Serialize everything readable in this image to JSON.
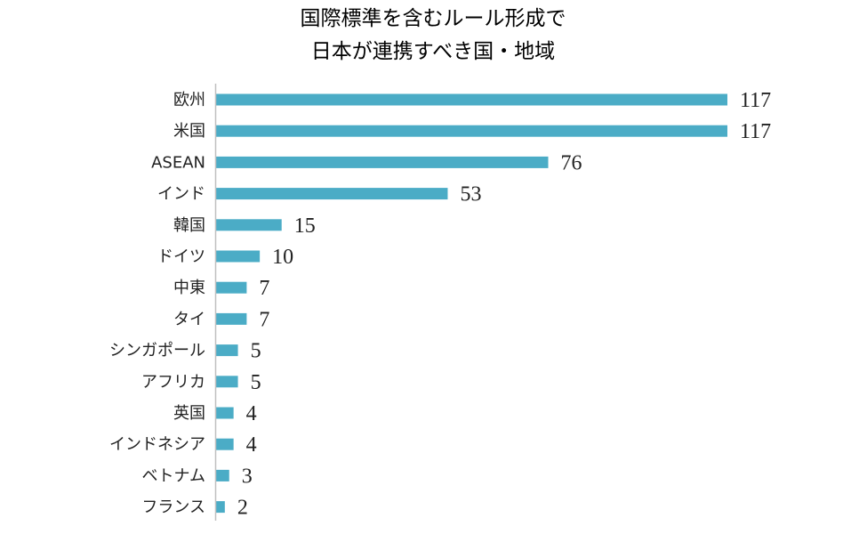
{
  "chart_data": {
    "type": "bar",
    "orientation": "horizontal",
    "title_lines": [
      "国際標準を含むルール形成で",
      "日本が連携すべき国・地域"
    ],
    "categories": [
      "欧州",
      "米国",
      "ASEAN",
      "インド",
      "韓国",
      "ドイツ",
      "中東",
      "タイ",
      "シンガポール",
      "アフリカ",
      "英国",
      "インドネシア",
      "ベトナム",
      "フランス"
    ],
    "values": [
      117,
      117,
      76,
      53,
      15,
      10,
      7,
      7,
      5,
      5,
      4,
      4,
      3,
      2
    ],
    "xlim": [
      0,
      117
    ],
    "grid": false,
    "legend": "none",
    "data_labels": true,
    "bar_color": "#4bacc6",
    "axis_color": "#bfbfbf"
  }
}
